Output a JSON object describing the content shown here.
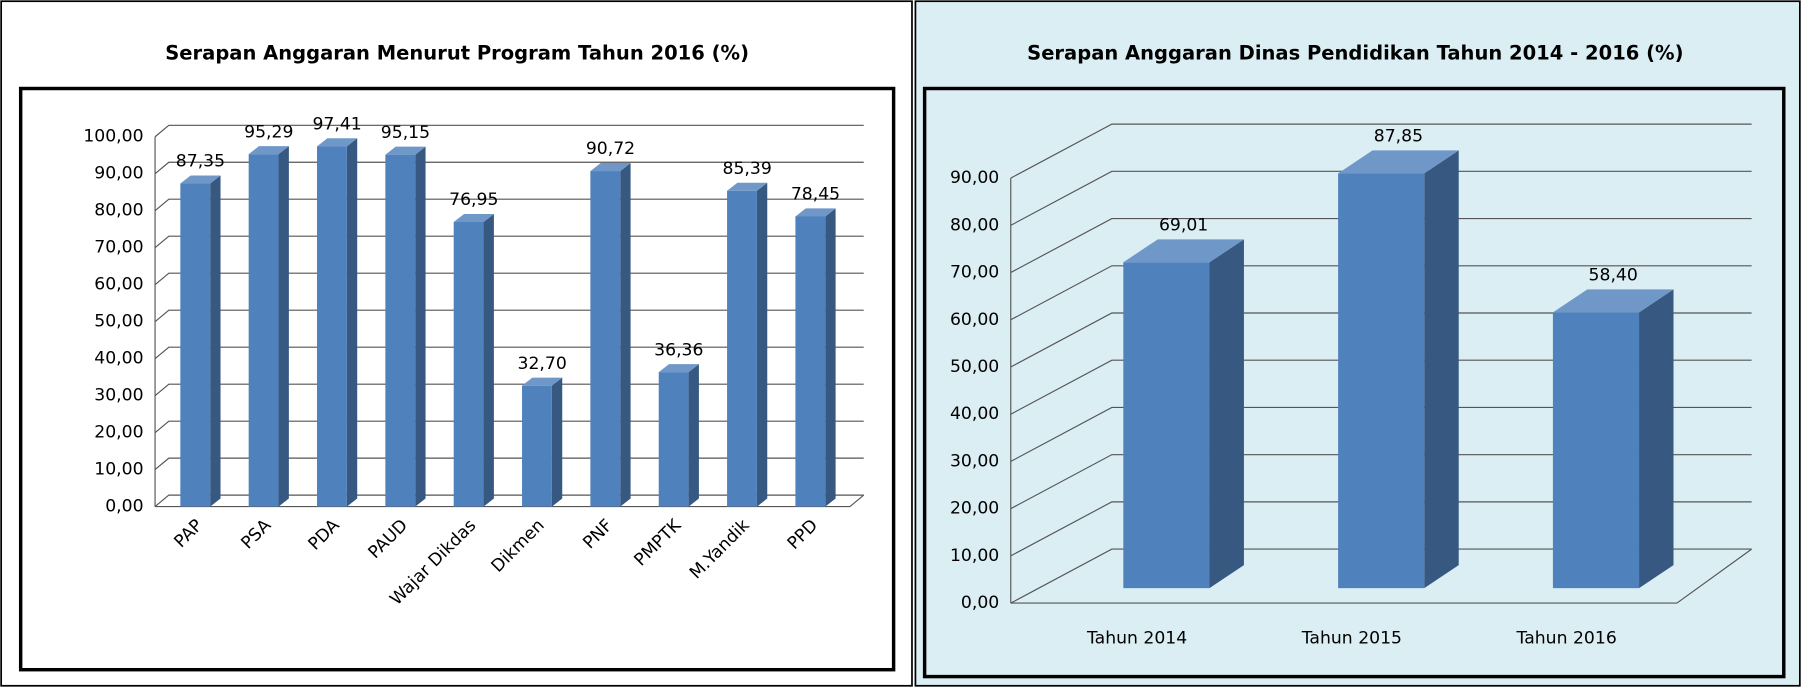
{
  "chart_data": [
    {
      "type": "bar",
      "title": "Serapan Anggaran Menurut Program Tahun 2016 (%)",
      "categories": [
        "PAP",
        "PSA",
        "PDA",
        "PAUD",
        "Wajar Dikdas",
        "Dikmen",
        "PNF",
        "PMPTK",
        "M.Yandik",
        "PPD"
      ],
      "values": [
        87.35,
        95.29,
        97.41,
        95.15,
        76.95,
        32.7,
        90.72,
        36.36,
        85.39,
        78.45
      ],
      "value_labels": [
        "87,35",
        "95,29",
        "97,41",
        "95,15",
        "76,95",
        "32,70",
        "90,72",
        "36,36",
        "85,39",
        "78,45"
      ],
      "color": "#4f81bd",
      "ylim": [
        0,
        100
      ],
      "yticks": [
        {
          "value": 0,
          "label": "0,00"
        },
        {
          "value": 10,
          "label": "10,00"
        },
        {
          "value": 20,
          "label": "20,00"
        },
        {
          "value": 30,
          "label": "30,00"
        },
        {
          "value": 40,
          "label": "40,00"
        },
        {
          "value": 50,
          "label": "50,00"
        },
        {
          "value": 60,
          "label": "60,00"
        },
        {
          "value": 70,
          "label": "70,00"
        },
        {
          "value": 80,
          "label": "80,00"
        },
        {
          "value": 90,
          "label": "90,00"
        },
        {
          "value": 100,
          "label": "100,00"
        }
      ],
      "grid": true
    },
    {
      "type": "bar",
      "title": "Serapan Anggaran Dinas Pendidikan Tahun 2014 - 2016 (%)",
      "categories": [
        "Tahun 2014",
        "Tahun 2015",
        "Tahun 2016"
      ],
      "values": [
        69.01,
        87.85,
        58.4
      ],
      "value_labels": [
        "69,01",
        "87,85",
        "58,40"
      ],
      "color": "#4f81bd",
      "ylim": [
        0,
        90
      ],
      "yticks": [
        {
          "value": 0,
          "label": "0,00"
        },
        {
          "value": 10,
          "label": "10,00"
        },
        {
          "value": 20,
          "label": "20,00"
        },
        {
          "value": 30,
          "label": "30,00"
        },
        {
          "value": 40,
          "label": "40,00"
        },
        {
          "value": 50,
          "label": "50,00"
        },
        {
          "value": 60,
          "label": "60,00"
        },
        {
          "value": 70,
          "label": "70,00"
        },
        {
          "value": 80,
          "label": "80,00"
        },
        {
          "value": 90,
          "label": "90,00"
        }
      ],
      "grid": true
    }
  ]
}
